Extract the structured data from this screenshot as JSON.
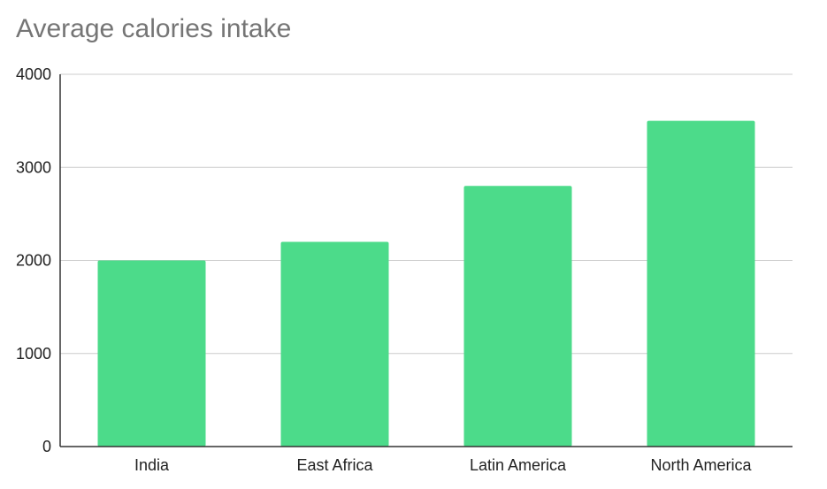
{
  "chart_data": {
    "type": "bar",
    "title": "Average calories intake",
    "categories": [
      "India",
      "East Africa",
      "Latin America",
      "North America"
    ],
    "values": [
      2000,
      2200,
      2800,
      3500
    ],
    "ylim": [
      0,
      4000
    ],
    "yticks": [
      0,
      1000,
      2000,
      3000,
      4000
    ],
    "grid": true,
    "bar_color": "#4cdb8a",
    "legend": "none"
  }
}
